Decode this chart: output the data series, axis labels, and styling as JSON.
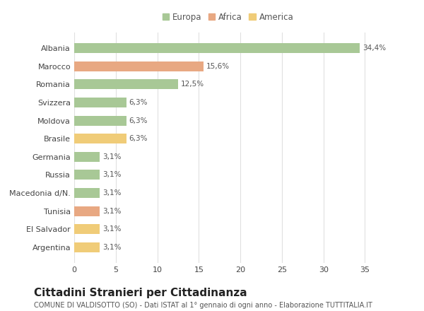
{
  "categories": [
    "Albania",
    "Marocco",
    "Romania",
    "Svizzera",
    "Moldova",
    "Brasile",
    "Germania",
    "Russia",
    "Macedonia d/N.",
    "Tunisia",
    "El Salvador",
    "Argentina"
  ],
  "values": [
    34.4,
    15.6,
    12.5,
    6.3,
    6.3,
    6.3,
    3.1,
    3.1,
    3.1,
    3.1,
    3.1,
    3.1
  ],
  "labels": [
    "34,4%",
    "15,6%",
    "12,5%",
    "6,3%",
    "6,3%",
    "6,3%",
    "3,1%",
    "3,1%",
    "3,1%",
    "3,1%",
    "3,1%",
    "3,1%"
  ],
  "continents": [
    "Europa",
    "Africa",
    "Europa",
    "Europa",
    "Europa",
    "America",
    "Europa",
    "Europa",
    "Europa",
    "Africa",
    "America",
    "America"
  ],
  "colors": {
    "Europa": "#a8c896",
    "Africa": "#e8a882",
    "America": "#f0cc78"
  },
  "legend_labels": [
    "Europa",
    "Africa",
    "America"
  ],
  "legend_colors": [
    "#a8c896",
    "#e8a882",
    "#f0cc78"
  ],
  "title": "Cittadini Stranieri per Cittadinanza",
  "subtitle": "COMUNE DI VALDISOTTO (SO) - Dati ISTAT al 1° gennaio di ogni anno - Elaborazione TUTTITALIA.IT",
  "xlim": [
    0,
    37
  ],
  "xticks": [
    0,
    5,
    10,
    15,
    20,
    25,
    30,
    35
  ],
  "background_color": "#ffffff",
  "grid_color": "#e0e0e0",
  "bar_height": 0.55,
  "title_fontsize": 11,
  "subtitle_fontsize": 7,
  "label_fontsize": 7.5,
  "tick_fontsize": 8,
  "legend_fontsize": 8.5
}
